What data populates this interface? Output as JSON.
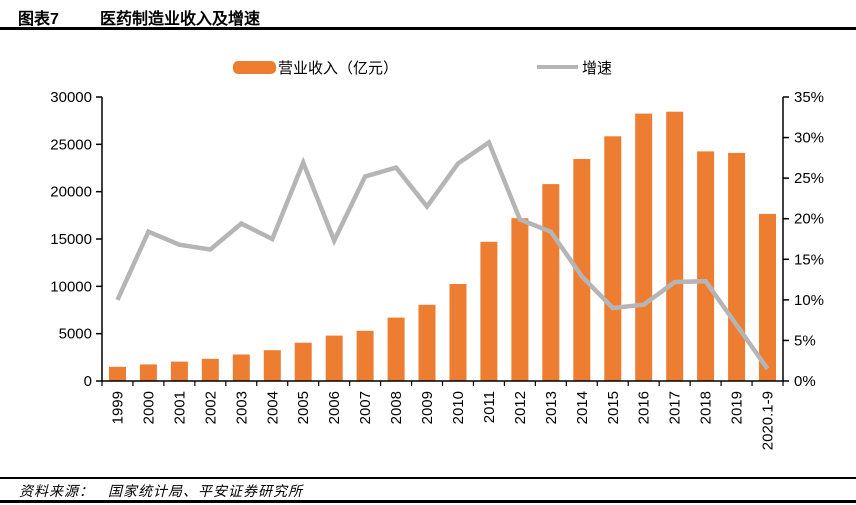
{
  "header": {
    "tag": "图表7",
    "title": "医药制造业收入及增速"
  },
  "footer": {
    "source_label": "资料来源：",
    "source_text": "国家统计局、平安证券研究所"
  },
  "colors": {
    "bar": "#ED7D31",
    "line": "#B5B5B5",
    "axis": "#000000",
    "text": "#000000"
  },
  "chart_data": {
    "type": "bar",
    "subtype": "bar+line-combo",
    "title": "医药制造业收入及增速",
    "legend_position": "top",
    "grid": false,
    "categories": [
      "1999",
      "2000",
      "2001",
      "2002",
      "2003",
      "2004",
      "2005",
      "2006",
      "2007",
      "2008",
      "2009",
      "2010",
      "2011",
      "2012",
      "2013",
      "2014",
      "2015",
      "2016",
      "2017",
      "2018",
      "2019",
      "2020.1-9"
    ],
    "series": [
      {
        "name": "营业收入（亿元）",
        "type": "bar",
        "axis": "left",
        "color": "#ED7D31",
        "values": [
          1500,
          1750,
          2050,
          2350,
          2800,
          3250,
          4050,
          4800,
          5300,
          6700,
          8050,
          10250,
          14700,
          17200,
          20800,
          23450,
          25850,
          28250,
          28450,
          24250,
          24100,
          17650
        ]
      },
      {
        "name": "增速",
        "type": "line",
        "axis": "right",
        "color": "#B5B5B5",
        "values": [
          10.0,
          18.4,
          16.8,
          16.2,
          19.4,
          17.5,
          26.9,
          17.3,
          25.2,
          26.3,
          21.5,
          26.8,
          29.4,
          19.9,
          18.4,
          12.9,
          9.0,
          9.4,
          12.2,
          12.3,
          6.9,
          1.5
        ]
      }
    ],
    "left_axis": {
      "min": 0,
      "max": 30000,
      "step": 5000,
      "tick_labels": [
        "0",
        "5000",
        "10000",
        "15000",
        "20000",
        "25000",
        "30000"
      ]
    },
    "right_axis": {
      "min": 0,
      "max": 35,
      "step": 5,
      "tick_labels": [
        "0%",
        "5%",
        "10%",
        "15%",
        "20%",
        "25%",
        "30%",
        "35%"
      ]
    }
  }
}
